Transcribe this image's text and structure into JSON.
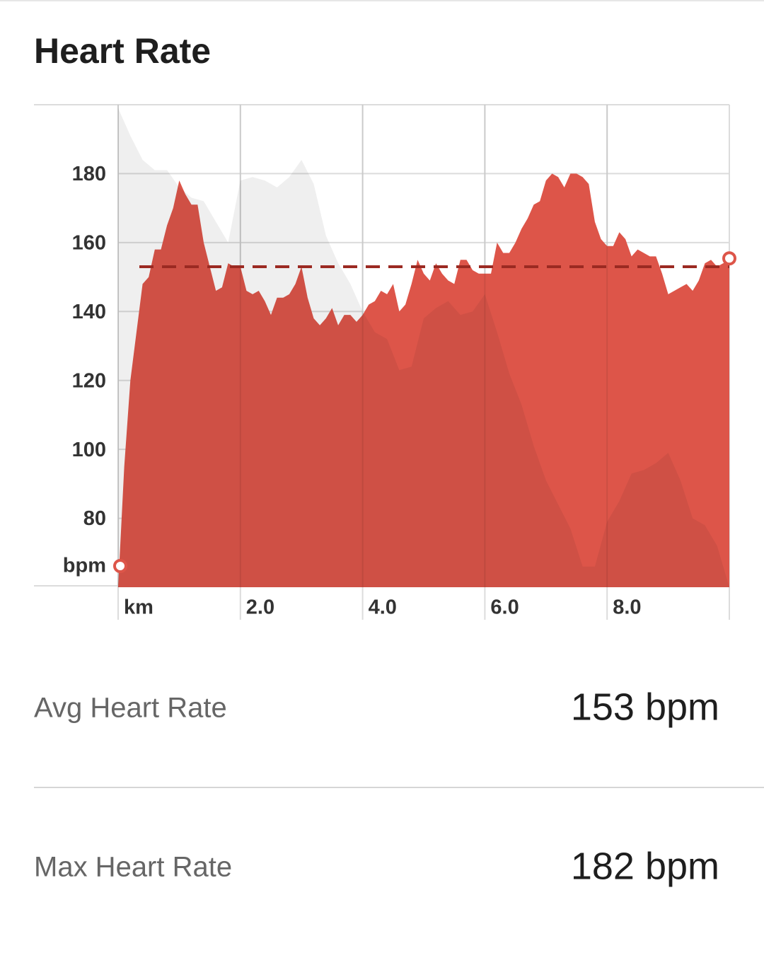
{
  "title": "Heart Rate",
  "chart_data": {
    "type": "area",
    "xlim": [
      0,
      10
    ],
    "ylim": [
      60,
      200
    ],
    "xticks": [
      {
        "value": 0,
        "label": "km"
      },
      {
        "value": 2,
        "label": "2.0"
      },
      {
        "value": 4,
        "label": "4.0"
      },
      {
        "value": 6,
        "label": "6.0"
      },
      {
        "value": 8,
        "label": "8.0"
      }
    ],
    "yticks": [
      80,
      100,
      120,
      140,
      160,
      180
    ],
    "y_label": "bpm",
    "grid": true,
    "series": [
      {
        "color": "#dd5549",
        "x": [
          0,
          0.1,
          0.2,
          0.3,
          0.4,
          0.5,
          0.6,
          0.7,
          0.8,
          0.9,
          1,
          1.1,
          1.2,
          1.3,
          1.4,
          1.5,
          1.6,
          1.7,
          1.8,
          1.9,
          2,
          2.1,
          2.2,
          2.3,
          2.4,
          2.5,
          2.6,
          2.7,
          2.8,
          2.9,
          3,
          3.1,
          3.2,
          3.3,
          3.4,
          3.5,
          3.6,
          3.7,
          3.8,
          3.9,
          4,
          4.1,
          4.2,
          4.3,
          4.4,
          4.5,
          4.6,
          4.7,
          4.8,
          4.9,
          5,
          5.1,
          5.2,
          5.3,
          5.4,
          5.5,
          5.6,
          5.7,
          5.8,
          5.9,
          6,
          6.1,
          6.2,
          6.3,
          6.4,
          6.5,
          6.6,
          6.7,
          6.8,
          6.9,
          7,
          7.1,
          7.2,
          7.3,
          7.4,
          7.5,
          7.6,
          7.7,
          7.8,
          7.9,
          8,
          8.1,
          8.2,
          8.3,
          8.4,
          8.5,
          8.6,
          8.7,
          8.8,
          8.9,
          9,
          9.1,
          9.2,
          9.3,
          9.4,
          9.5,
          9.6,
          9.7,
          9.8,
          10
        ],
        "values": [
          60,
          95,
          120,
          134,
          148,
          150,
          158,
          158,
          165,
          170,
          178,
          174,
          171,
          171,
          160,
          153,
          146,
          147,
          154,
          153,
          153,
          146,
          145,
          146,
          143,
          139,
          144,
          144,
          145,
          148,
          153,
          144,
          138,
          136,
          138,
          141,
          136,
          139,
          139,
          137,
          139,
          142,
          143,
          146,
          145,
          148,
          140,
          142,
          148,
          155,
          151,
          149,
          154,
          151,
          149,
          148,
          155,
          155,
          152,
          151,
          151,
          151,
          160,
          157,
          157,
          160,
          164,
          167,
          171,
          172,
          178,
          180,
          179,
          176,
          180,
          180,
          179,
          177,
          166,
          161,
          159,
          159,
          163,
          161,
          156,
          158,
          157,
          156,
          156,
          151,
          145,
          146,
          147,
          148,
          146,
          149,
          154,
          155,
          153,
          155
        ]
      },
      {
        "color": "#efefef",
        "x": [
          0,
          0.2,
          0.4,
          0.6,
          0.8,
          1,
          1.2,
          1.4,
          1.6,
          1.8,
          2,
          2.2,
          2.4,
          2.6,
          2.8,
          3,
          3.2,
          3.4,
          3.6,
          3.8,
          4,
          4.2,
          4.4,
          4.6,
          4.8,
          5,
          5.2,
          5.4,
          5.6,
          5.8,
          6,
          6.2,
          6.4,
          6.6,
          6.8,
          7,
          7.2,
          7.4,
          7.6,
          7.8,
          8,
          8.2,
          8.4,
          8.6,
          8.8,
          9,
          9.2,
          9.4,
          9.6,
          9.8,
          10
        ],
        "values": [
          199,
          191,
          184,
          181,
          181,
          176,
          173,
          172,
          166,
          160,
          178,
          179,
          178,
          176,
          179,
          184,
          177,
          162,
          154,
          148,
          140,
          134,
          132,
          123,
          124,
          138,
          141,
          143,
          139,
          140,
          145,
          134,
          122,
          113,
          101,
          91,
          84,
          77,
          66,
          66,
          79,
          85,
          93,
          94,
          96,
          99,
          91,
          80,
          78,
          72,
          60
        ]
      }
    ]
  },
  "stats": [
    {
      "label": "Avg Heart Rate",
      "value": 153,
      "value_label": "153 bpm",
      "line_color": "#9b2a22"
    },
    {
      "label": "Max Heart Rate",
      "value": 182,
      "value_label": "182 bpm"
    }
  ]
}
